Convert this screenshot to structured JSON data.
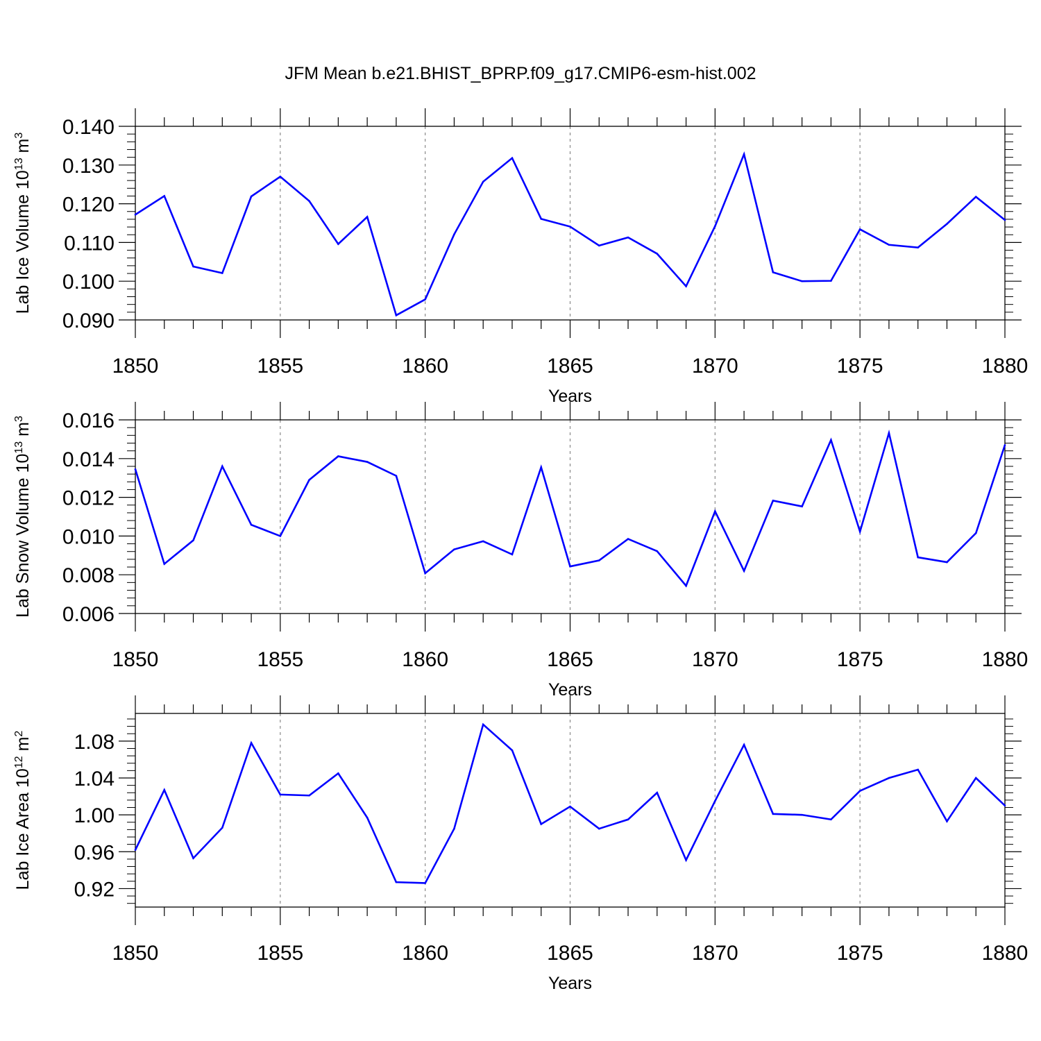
{
  "title": "JFM Mean b.e21.BHIST_BPRP.f09_g17.CMIP6-esm-hist.002",
  "colors": {
    "line": "#0000ff",
    "axis": "#000000",
    "grid": "#888888"
  },
  "chart_data": [
    {
      "type": "line",
      "ylabel": "Lab Ice Volume",
      "yunit_base": "10",
      "yunit_exp": "13",
      "yunit_sym": "m",
      "yunit_sym_exp": "3",
      "xlabel": "Years",
      "xlim": [
        1850,
        1880
      ],
      "ylim": [
        0.09,
        0.14
      ],
      "yticks": [
        0.09,
        0.1,
        0.11,
        0.12,
        0.13,
        0.14
      ],
      "ytick_labels": [
        "0.090",
        "0.100",
        "0.110",
        "0.120",
        "0.130",
        "0.140"
      ],
      "xticks": [
        1850,
        1855,
        1860,
        1865,
        1870,
        1875,
        1880
      ],
      "xtick_labels": [
        "1850",
        "1855",
        "1860",
        "1865",
        "1870",
        "1875",
        "1880"
      ],
      "grid_x": [
        1855,
        1860,
        1865,
        1870,
        1875
      ],
      "x": [
        1850,
        1851,
        1852,
        1853,
        1854,
        1855,
        1856,
        1857,
        1858,
        1859,
        1860,
        1861,
        1862,
        1863,
        1864,
        1865,
        1866,
        1867,
        1868,
        1869,
        1870,
        1871,
        1872,
        1873,
        1874,
        1875,
        1876,
        1877,
        1878,
        1879,
        1880
      ],
      "values": [
        0.1172,
        0.122,
        0.1038,
        0.1021,
        0.1219,
        0.127,
        0.1207,
        0.1096,
        0.1166,
        0.0912,
        0.0953,
        0.1121,
        0.1257,
        0.1318,
        0.1161,
        0.1141,
        0.1092,
        0.1113,
        0.1071,
        0.0987,
        0.1142,
        0.1328,
        0.1023,
        0.1,
        0.1001,
        0.1134,
        0.1094,
        0.1087,
        0.1148,
        0.1218,
        0.1158
      ]
    },
    {
      "type": "line",
      "ylabel": "Lab Snow Volume",
      "yunit_base": "10",
      "yunit_exp": "13",
      "yunit_sym": "m",
      "yunit_sym_exp": "3",
      "xlabel": "Years",
      "xlim": [
        1850,
        1880
      ],
      "ylim": [
        0.006,
        0.016
      ],
      "yticks": [
        0.006,
        0.008,
        0.01,
        0.012,
        0.014,
        0.016
      ],
      "ytick_labels": [
        "0.006",
        "0.008",
        "0.010",
        "0.012",
        "0.014",
        "0.016"
      ],
      "xticks": [
        1850,
        1855,
        1860,
        1865,
        1870,
        1875,
        1880
      ],
      "xtick_labels": [
        "1850",
        "1855",
        "1860",
        "1865",
        "1870",
        "1875",
        "1880"
      ],
      "grid_x": [
        1855,
        1860,
        1865,
        1870,
        1875
      ],
      "x": [
        1850,
        1851,
        1852,
        1853,
        1854,
        1855,
        1856,
        1857,
        1858,
        1859,
        1860,
        1861,
        1862,
        1863,
        1864,
        1865,
        1866,
        1867,
        1868,
        1869,
        1870,
        1871,
        1872,
        1873,
        1874,
        1875,
        1876,
        1877,
        1878,
        1879,
        1880
      ],
      "values": [
        0.01345,
        0.00856,
        0.00978,
        0.0136,
        0.01058,
        0.01,
        0.0129,
        0.01412,
        0.01383,
        0.01311,
        0.00808,
        0.00931,
        0.00973,
        0.00905,
        0.01355,
        0.00843,
        0.00874,
        0.00985,
        0.00922,
        0.00743,
        0.01128,
        0.0082,
        0.01183,
        0.01153,
        0.01496,
        0.01023,
        0.01532,
        0.0089,
        0.00865,
        0.01015,
        0.0147
      ]
    },
    {
      "type": "line",
      "ylabel": "Lab Ice Area",
      "yunit_base": "10",
      "yunit_exp": "12",
      "yunit_sym": "m",
      "yunit_sym_exp": "2",
      "xlabel": "Years",
      "xlim": [
        1850,
        1880
      ],
      "ylim": [
        0.9,
        1.11
      ],
      "yticks": [
        0.92,
        0.96,
        1.0,
        1.04,
        1.08
      ],
      "ytick_labels": [
        "0.92",
        "0.96",
        "1.00",
        "1.04",
        "1.08"
      ],
      "xticks": [
        1850,
        1855,
        1860,
        1865,
        1870,
        1875,
        1880
      ],
      "xtick_labels": [
        "1850",
        "1855",
        "1860",
        "1865",
        "1870",
        "1875",
        "1880"
      ],
      "grid_x": [
        1855,
        1860,
        1865,
        1870,
        1875
      ],
      "x": [
        1850,
        1851,
        1852,
        1853,
        1854,
        1855,
        1856,
        1857,
        1858,
        1859,
        1860,
        1861,
        1862,
        1863,
        1864,
        1865,
        1866,
        1867,
        1868,
        1869,
        1870,
        1871,
        1872,
        1873,
        1874,
        1875,
        1876,
        1877,
        1878,
        1879,
        1880
      ],
      "values": [
        0.962,
        1.027,
        0.953,
        0.986,
        1.078,
        1.022,
        1.021,
        1.045,
        0.997,
        0.927,
        0.926,
        0.985,
        1.098,
        1.07,
        0.99,
        1.009,
        0.985,
        0.995,
        1.024,
        0.951,
        1.015,
        1.076,
        1.001,
        1.0,
        0.995,
        1.026,
        1.04,
        1.049,
        0.993,
        1.04,
        1.01
      ]
    }
  ]
}
